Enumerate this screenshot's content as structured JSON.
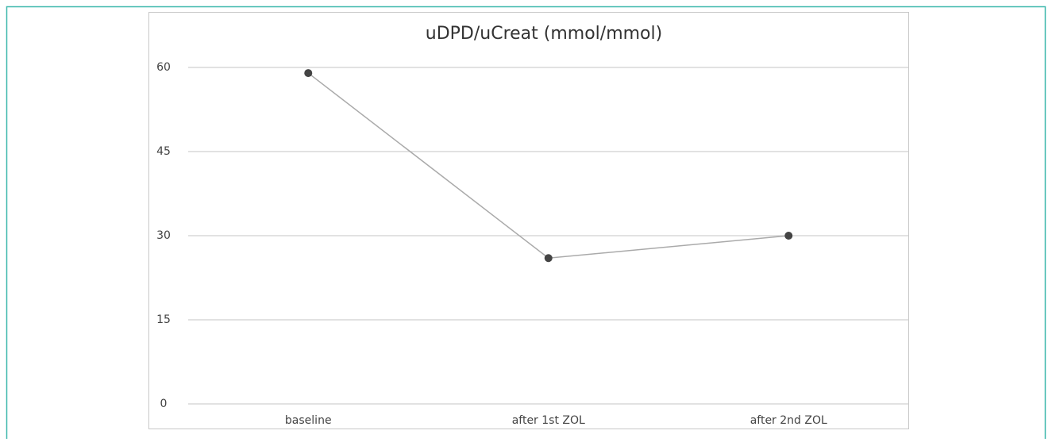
{
  "chart_data": {
    "type": "line",
    "title": "uDPD/uCreat (mmol/mmol)",
    "categories": [
      "baseline",
      "after 1st ZOL",
      "after 2nd ZOL"
    ],
    "series": [
      {
        "name": "uDPD/uCreat",
        "color": "#aaaaaa",
        "values": [
          59,
          26,
          30
        ]
      }
    ],
    "ylim": [
      0,
      60
    ],
    "yticks": [
      0,
      15,
      30,
      45,
      60
    ],
    "grid": true
  }
}
